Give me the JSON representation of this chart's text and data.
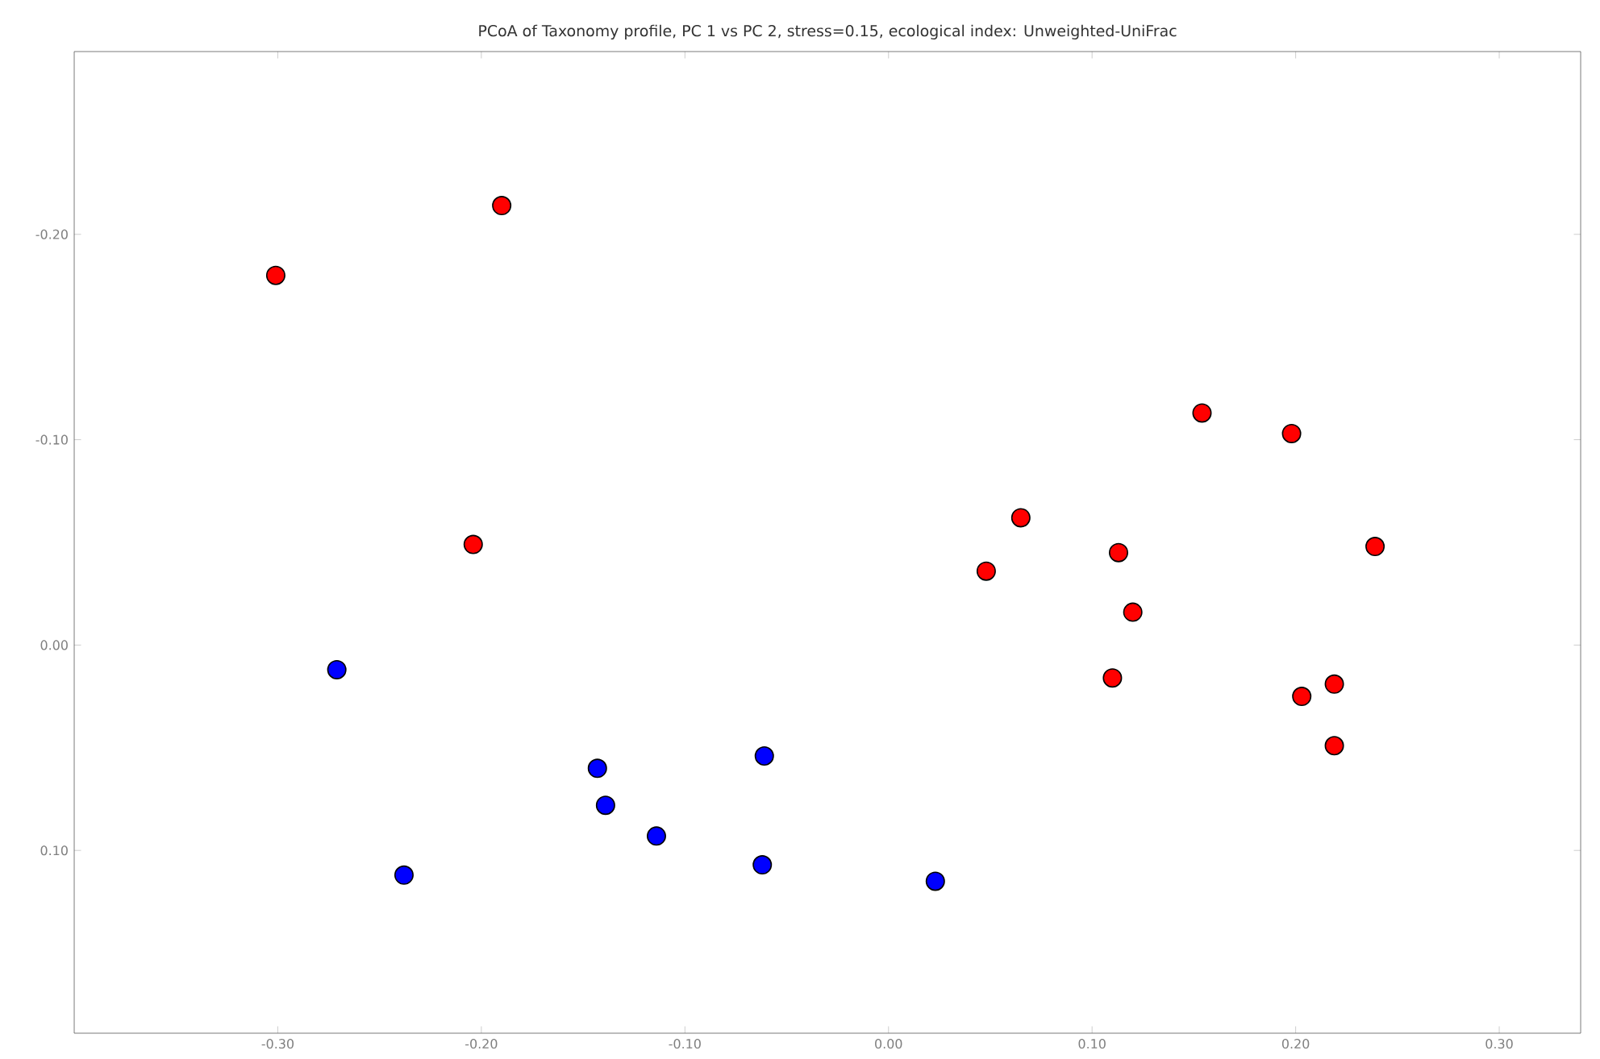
{
  "chart_data": {
    "type": "scatter",
    "title": "PCoA of Taxonomy profile, PC 1 vs PC 2, stress=0.15, ecological index: Unweighted-UniFrac",
    "marker": "circle",
    "xlim": [
      -0.4,
      0.34
    ],
    "ylim": [
      0.189,
      -0.289
    ],
    "xticks": [
      {
        "value": -0.3,
        "label": "-0.30"
      },
      {
        "value": -0.2,
        "label": "-0.20"
      },
      {
        "value": -0.1,
        "label": "-0.10"
      },
      {
        "value": 0,
        "label": "0.00"
      },
      {
        "value": 0.1,
        "label": "0.10"
      },
      {
        "value": 0.2,
        "label": "0.20"
      },
      {
        "value": 0.3,
        "label": "0.30"
      }
    ],
    "yticks": [
      {
        "value": -0.2,
        "label": "-0.20"
      },
      {
        "value": -0.1,
        "label": "-0.10"
      },
      {
        "value": 0,
        "label": "0.00"
      },
      {
        "value": 0.1,
        "label": "0.10"
      }
    ],
    "series": [
      {
        "color": "#ff0000",
        "x": [
          -0.301,
          -0.19,
          -0.204,
          0.154,
          0.198,
          0.065,
          0.048,
          0.113,
          0.12,
          0.239,
          0.11,
          0.203,
          0.219,
          0.219
        ],
        "values": [
          -0.18,
          -0.214,
          -0.049,
          -0.113,
          -0.103,
          -0.062,
          -0.036,
          -0.045,
          -0.016,
          -0.048,
          0.016,
          0.025,
          0.019,
          0.049
        ]
      },
      {
        "color": "#0000ff",
        "x": [
          -0.271,
          -0.143,
          -0.139,
          -0.061,
          -0.114,
          -0.238,
          -0.062,
          0.023
        ],
        "values": [
          0.012,
          0.06,
          0.078,
          0.054,
          0.093,
          0.112,
          0.107,
          0.115
        ]
      }
    ]
  }
}
